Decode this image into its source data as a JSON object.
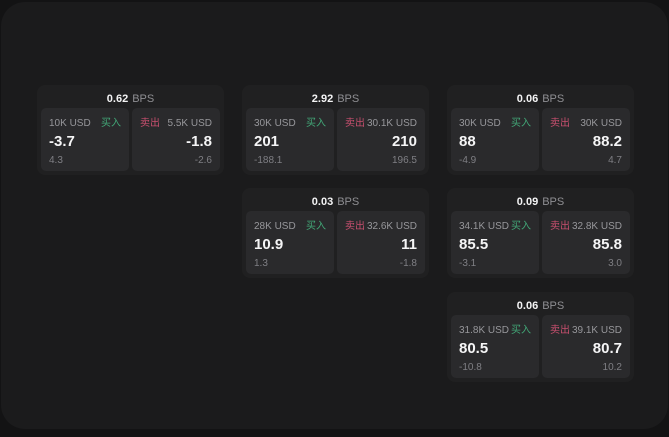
{
  "theme": {
    "window_bg": "#1b1b1c",
    "card_bg": "#202021",
    "panel_bg": "#2a2a2c",
    "buy_color": "#42a777",
    "sell_color": "#c74f6e",
    "primary_text": "#f5f5f6",
    "muted_text": "#97979b"
  },
  "cards": [
    {
      "bps_value": "0.62",
      "bps_unit": "BPS",
      "buy": {
        "amount": "10K USD",
        "side": "买入",
        "value": "-3.7",
        "sub": "4.3"
      },
      "sell": {
        "side": "卖出",
        "amount": "5.5K USD",
        "value": "-1.8",
        "sub": "-2.6"
      }
    },
    {
      "bps_value": "2.92",
      "bps_unit": "BPS",
      "buy": {
        "amount": "30K USD",
        "side": "买入",
        "value": "201",
        "sub": "-188.1"
      },
      "sell": {
        "side": "卖出",
        "amount": "30.1K USD",
        "value": "210",
        "sub": "196.5"
      }
    },
    {
      "bps_value": "0.06",
      "bps_unit": "BPS",
      "buy": {
        "amount": "30K USD",
        "side": "买入",
        "value": "88",
        "sub": "-4.9"
      },
      "sell": {
        "side": "卖出",
        "amount": "30K USD",
        "value": "88.2",
        "sub": "4.7"
      }
    },
    {
      "bps_value": "0.03",
      "bps_unit": "BPS",
      "buy": {
        "amount": "28K USD",
        "side": "买入",
        "value": "10.9",
        "sub": "1.3"
      },
      "sell": {
        "side": "卖出",
        "amount": "32.6K USD",
        "value": "11",
        "sub": "-1.8"
      }
    },
    {
      "bps_value": "0.09",
      "bps_unit": "BPS",
      "buy": {
        "amount": "34.1K USD",
        "side": "买入",
        "value": "85.5",
        "sub": "-3.1"
      },
      "sell": {
        "side": "卖出",
        "amount": "32.8K USD",
        "value": "85.8",
        "sub": "3.0"
      }
    },
    {
      "bps_value": "0.06",
      "bps_unit": "BPS",
      "buy": {
        "amount": "31.8K USD",
        "side": "买入",
        "value": "80.5",
        "sub": "-10.8"
      },
      "sell": {
        "side": "卖出",
        "amount": "39.1K USD",
        "value": "80.7",
        "sub": "10.2"
      }
    }
  ]
}
